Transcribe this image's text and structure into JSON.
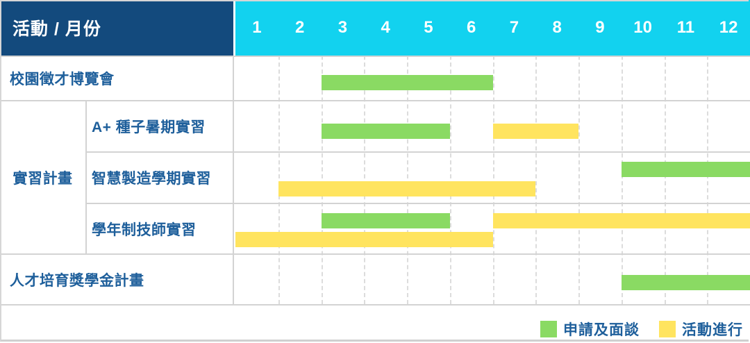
{
  "header": {
    "title": "活動 / 月份"
  },
  "colors": {
    "header_bg": "#134a7d",
    "months_bg": "#12d2ef",
    "label_text": "#1e5f9b",
    "apply": "#8ada63",
    "active": "#ffe45f",
    "grid": "#d3d3d3",
    "grid_dash": "#dcdcdc"
  },
  "chart_data": {
    "type": "gantt",
    "title": "活動 / 月份",
    "x_unit": "month",
    "x_range": [
      1,
      12
    ],
    "months": [
      "1",
      "2",
      "3",
      "4",
      "5",
      "6",
      "7",
      "8",
      "9",
      "10",
      "11",
      "12"
    ],
    "group_label": "實習計畫",
    "rows": [
      {
        "label": "校園徵才博覽會",
        "group": "",
        "bars": [
          {
            "type": "apply",
            "start": 3,
            "end": 6,
            "lane": "top"
          }
        ]
      },
      {
        "label": "A+ 種子暑期實習",
        "group": "實習計畫",
        "bars": [
          {
            "type": "apply",
            "start": 3,
            "end": 5,
            "lane": "top"
          },
          {
            "type": "active",
            "start": 7,
            "end": 8,
            "lane": "top"
          }
        ]
      },
      {
        "label": "智慧製造學期實習",
        "group": "實習計畫",
        "bars": [
          {
            "type": "apply",
            "start": 10,
            "end": 12,
            "lane": "top"
          },
          {
            "type": "active",
            "start": 2,
            "end": 7,
            "lane": "bottom"
          }
        ]
      },
      {
        "label": "學年制技師實習",
        "group": "實習計畫",
        "bars": [
          {
            "type": "apply",
            "start": 3,
            "end": 5,
            "lane": "top"
          },
          {
            "type": "active",
            "start": 7,
            "end": 12,
            "lane": "top"
          },
          {
            "type": "active",
            "start": 1,
            "end": 6,
            "lane": "bottom"
          }
        ]
      },
      {
        "label": "人才培育獎學金計畫",
        "group": "",
        "bars": [
          {
            "type": "apply",
            "start": 10,
            "end": 12,
            "lane": "top"
          }
        ]
      }
    ],
    "legend": [
      {
        "key": "apply",
        "label": "申請及面談"
      },
      {
        "key": "active",
        "label": "活動進行"
      }
    ]
  }
}
